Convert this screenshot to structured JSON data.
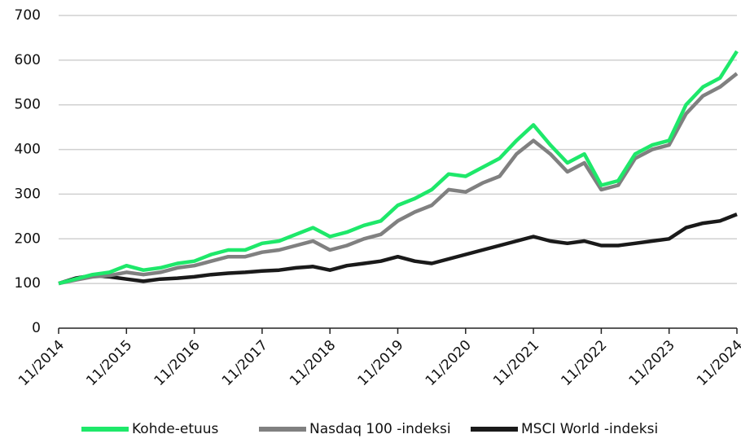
{
  "chart_data": {
    "type": "line",
    "x": [
      "11/2014",
      null,
      null,
      null,
      "11/2015",
      null,
      null,
      null,
      "11/2016",
      null,
      null,
      null,
      "11/2017",
      null,
      null,
      null,
      "11/2018",
      null,
      null,
      null,
      "11/2019",
      null,
      null,
      null,
      "11/2020",
      null,
      null,
      null,
      "11/2021",
      null,
      null,
      null,
      "11/2022",
      null,
      null,
      null,
      "11/2023",
      null,
      null,
      null,
      "11/2024"
    ],
    "series": [
      {
        "name": "Kohde-etuus",
        "color": "#1ee86a",
        "values": [
          100,
          110,
          120,
          125,
          140,
          130,
          135,
          145,
          150,
          165,
          175,
          175,
          190,
          195,
          210,
          225,
          205,
          215,
          230,
          240,
          275,
          290,
          310,
          345,
          340,
          360,
          380,
          420,
          455,
          410,
          370,
          390,
          320,
          330,
          390,
          410,
          420,
          500,
          540,
          560,
          620
        ]
      },
      {
        "name": "Nasdaq 100 -indeksi",
        "color": "#808080",
        "values": [
          100,
          108,
          115,
          118,
          125,
          120,
          125,
          135,
          140,
          150,
          160,
          160,
          170,
          175,
          185,
          195,
          175,
          185,
          200,
          210,
          240,
          260,
          275,
          310,
          305,
          325,
          340,
          390,
          420,
          390,
          350,
          370,
          310,
          320,
          380,
          400,
          410,
          480,
          520,
          540,
          570
        ]
      },
      {
        "name": "MSCI World -indeksi",
        "color": "#1a1a1a",
        "values": [
          100,
          112,
          118,
          115,
          110,
          105,
          110,
          112,
          115,
          120,
          123,
          125,
          128,
          130,
          135,
          138,
          130,
          140,
          145,
          150,
          160,
          150,
          145,
          155,
          165,
          175,
          185,
          195,
          205,
          195,
          190,
          195,
          185,
          185,
          190,
          195,
          200,
          225,
          235,
          240,
          255
        ]
      }
    ],
    "ylim": [
      0,
      700
    ],
    "yticks": [
      0,
      100,
      200,
      300,
      400,
      500,
      600,
      700
    ],
    "grid": true,
    "legend": "bottom"
  }
}
